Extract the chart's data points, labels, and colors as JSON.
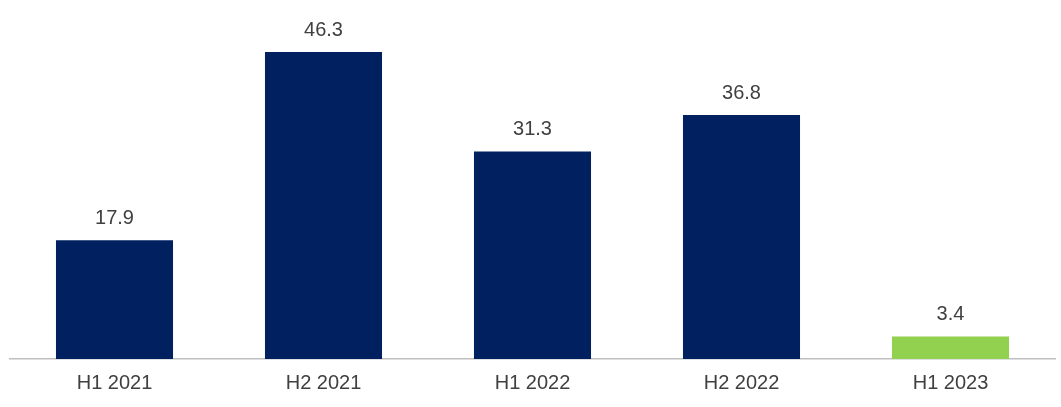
{
  "chart_data": {
    "type": "bar",
    "categories": [
      "H1 2021",
      "H2 2021",
      "H1 2022",
      "H2 2022",
      "H1 2023"
    ],
    "values": [
      17.9,
      46.3,
      31.3,
      36.8,
      3.4
    ],
    "colors": [
      "#002060",
      "#002060",
      "#002060",
      "#002060",
      "#92d050"
    ],
    "data_labels": true
  }
}
